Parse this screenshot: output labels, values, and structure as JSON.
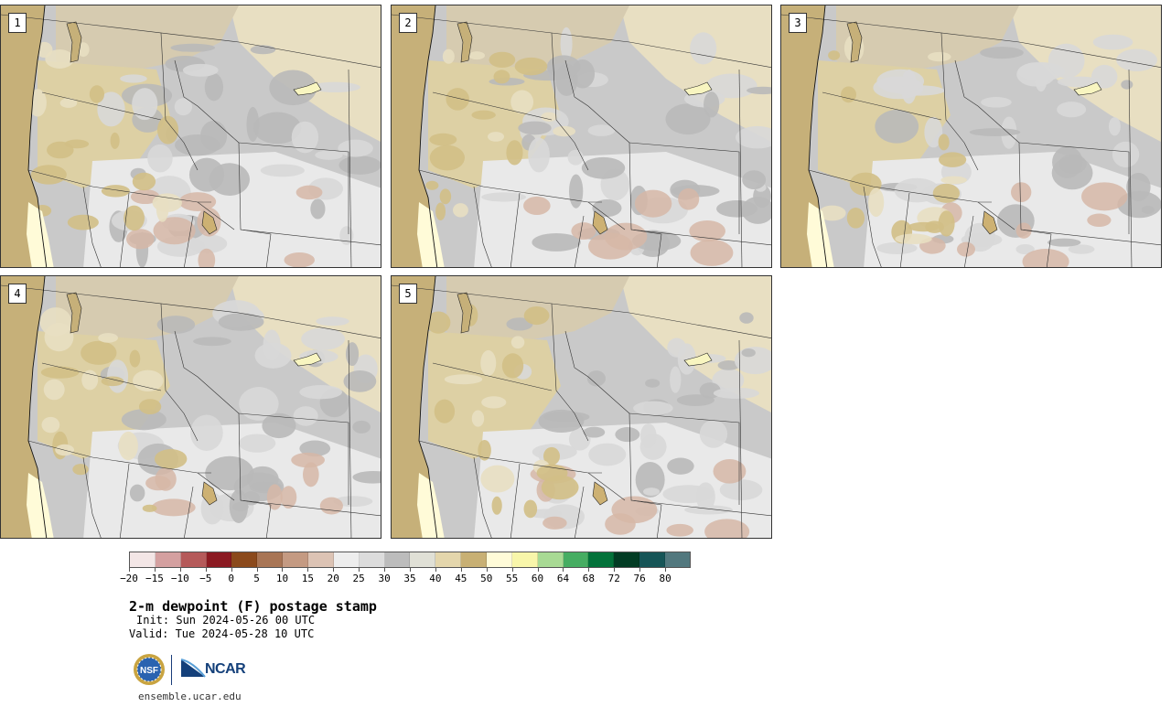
{
  "panels": [
    {
      "label": "1"
    },
    {
      "label": "2"
    },
    {
      "label": "3"
    },
    {
      "label": "4"
    },
    {
      "label": "5"
    }
  ],
  "colorbar": {
    "colors": [
      "#f3e6e6",
      "#d4a0a0",
      "#b55a5a",
      "#8b1a22",
      "#8b4a1c",
      "#a87555",
      "#c49a82",
      "#dcc3b4",
      "#ededed",
      "#dcdcdc",
      "#bcbcbc",
      "#e0e0d6",
      "#e4d6ac",
      "#c8b074",
      "#fffbd8",
      "#f8f6aa",
      "#a8da94",
      "#46ad62",
      "#03723a",
      "#023c24",
      "#165557",
      "#52787e"
    ],
    "ticks": [
      "−20",
      "−15",
      "−10",
      "−5",
      "0",
      "5",
      "10",
      "15",
      "20",
      "25",
      "30",
      "35",
      "40",
      "45",
      "50",
      "55",
      "60",
      "64",
      "68",
      "72",
      "76",
      "80"
    ]
  },
  "title": "2-m dewpoint (F) postage stamp",
  "init": "Init: Sun 2024-05-26 00 UTC",
  "valid": "Valid: Tue 2024-05-28 10 UTC",
  "logos": {
    "nsf": "NSF",
    "ncar": "NCAR"
  },
  "footer": "ensemble.ucar.edu",
  "map_colors": {
    "ocean": "#c6b079",
    "land_dry": "#e8dfc2",
    "land_mid": "#d6cbb0",
    "gray_light": "#e9e9e9",
    "gray_mid": "#c9c9c9",
    "gray_dark": "#b9b9b9",
    "brown": "#d6b7a7",
    "cream": "#fffbd8"
  }
}
